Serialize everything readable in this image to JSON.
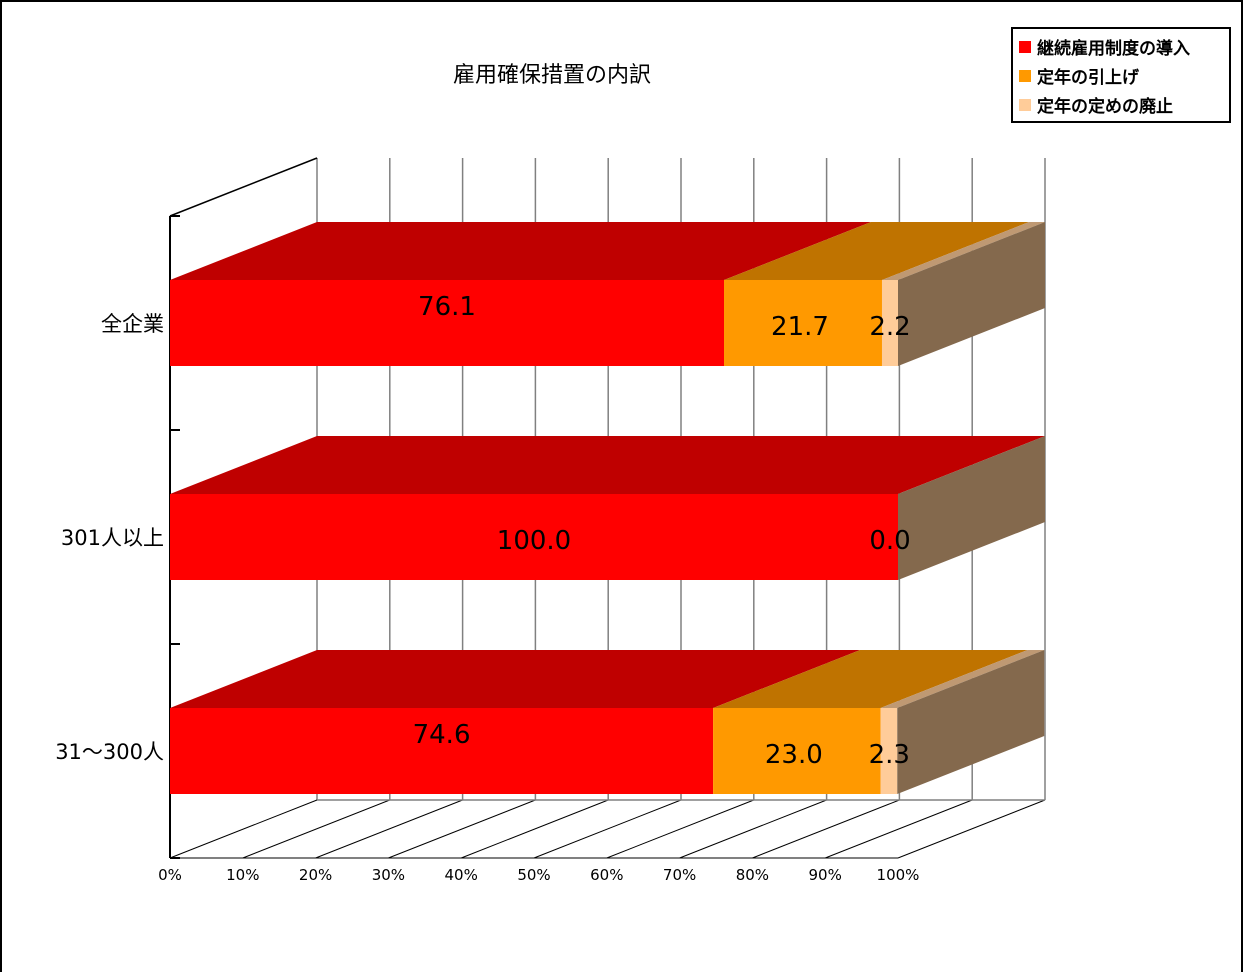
{
  "chart_data": {
    "type": "bar",
    "orientation": "horizontal",
    "stacked": "percent",
    "three_d": true,
    "title": "雇用確保措置の内訳",
    "categories": [
      "全企業",
      "301人以上",
      "31～300人"
    ],
    "series": [
      {
        "name": "継続雇用制度の導入",
        "values": [
          76.1,
          100.0,
          74.6
        ],
        "labels": [
          "76.1",
          "100.0",
          "74.6"
        ],
        "color": "#ff0000"
      },
      {
        "name": "定年の引上げ",
        "values": [
          21.7,
          0.0,
          23.0
        ],
        "labels": [
          "21.7",
          "",
          "23.0"
        ],
        "color": "#ff9900"
      },
      {
        "name": "定年の定めの廃止",
        "values": [
          2.2,
          0.0,
          2.3
        ],
        "labels": [
          "2.2",
          "0.0",
          "2.3"
        ],
        "color": "#ffcc99"
      }
    ],
    "x_ticks": [
      "0%",
      "10%",
      "20%",
      "30%",
      "40%",
      "50%",
      "60%",
      "70%",
      "80%",
      "90%",
      "100%"
    ],
    "xlim": [
      0,
      100
    ],
    "grid": true,
    "legend_position": "top-right"
  }
}
